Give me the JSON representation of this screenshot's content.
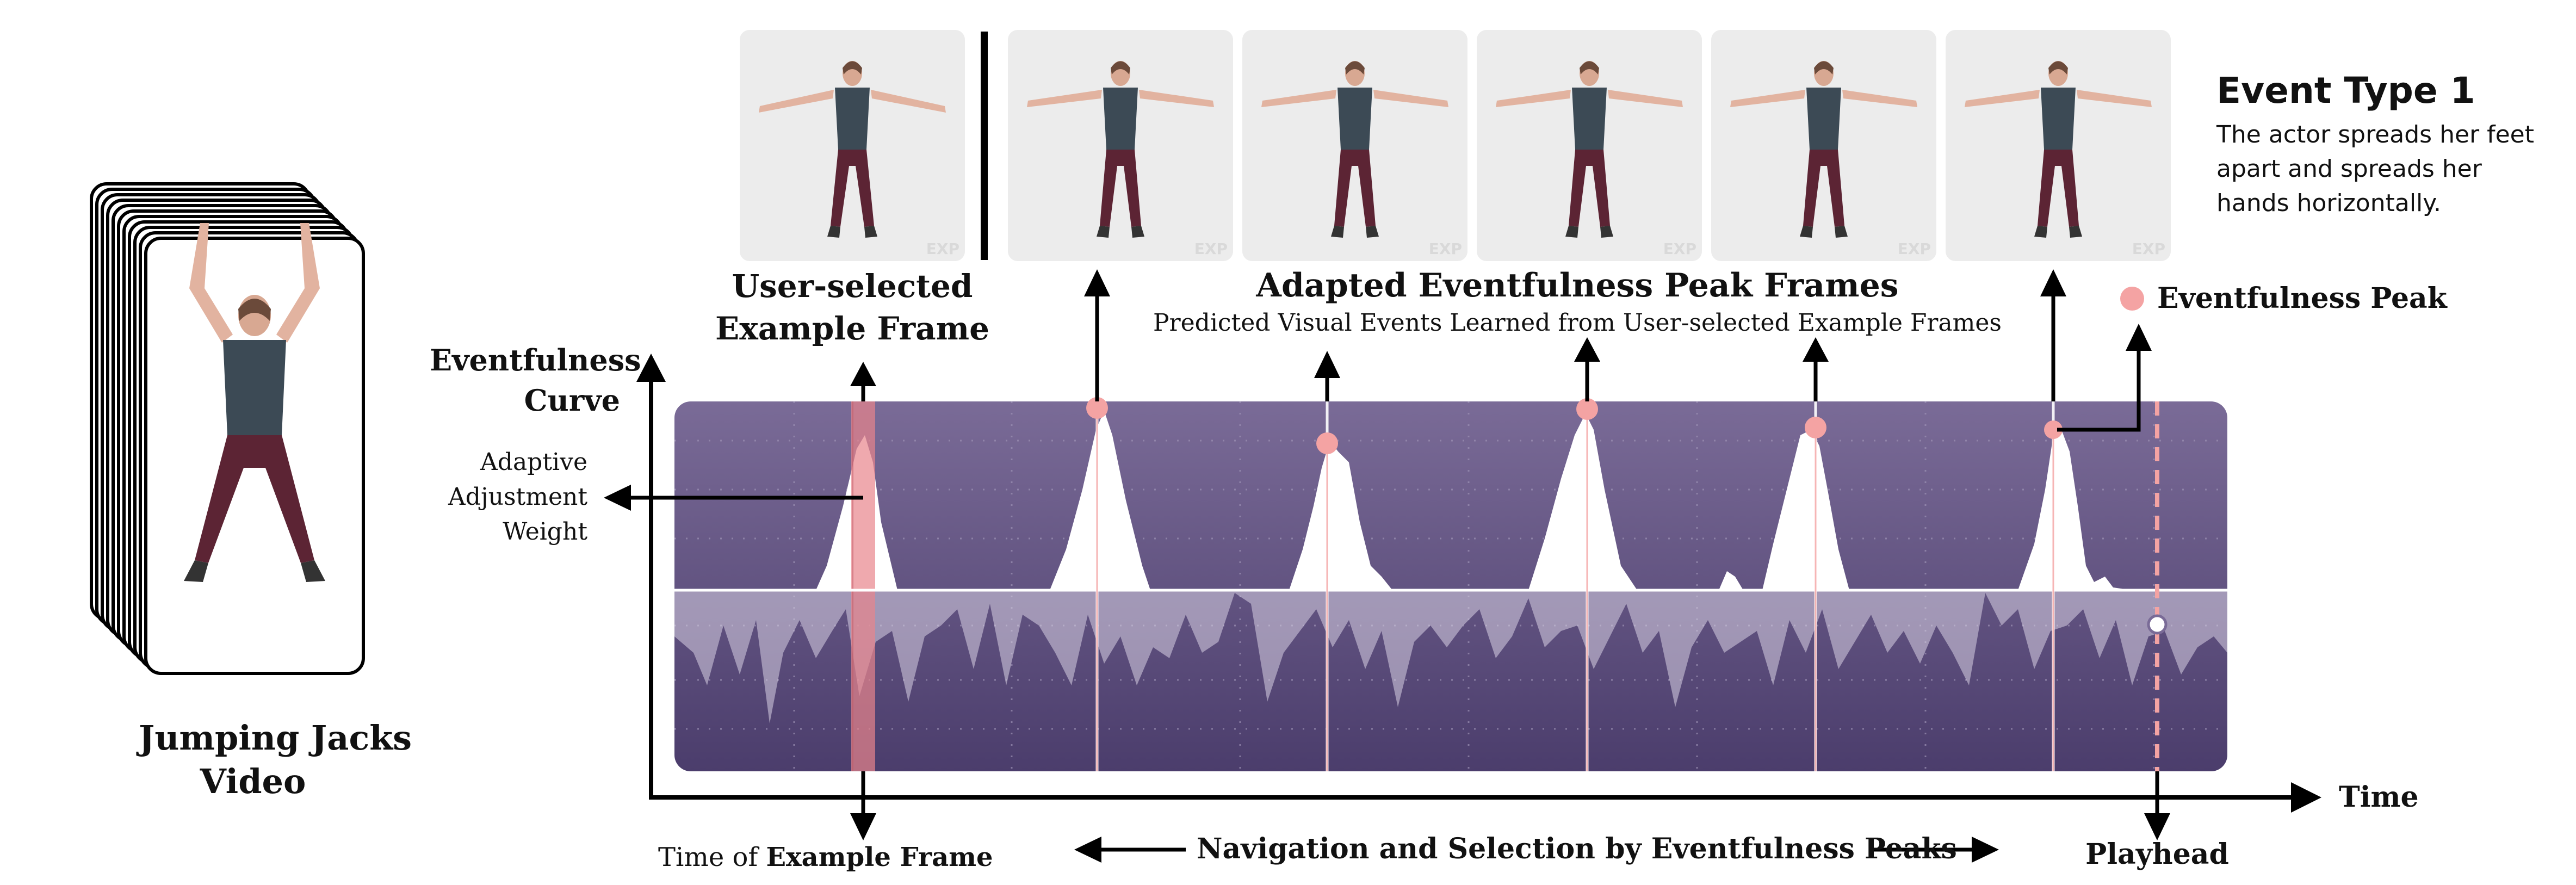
{
  "video": {
    "title_line1": "Jumping Jacks",
    "title_line2": "Video"
  },
  "example_frame": {
    "label_line1": "User-selected",
    "label_line2": "Example Frame"
  },
  "adapted": {
    "title": "Adapted Eventfulness Peak Frames",
    "subtitle": "Predicted Visual Events Learned from User-selected Example Frames"
  },
  "event_type": {
    "title": "Event Type 1",
    "desc_line1": "The actor spreads her feet",
    "desc_line2": "apart and spreads her",
    "desc_line3": "hands horizontally."
  },
  "legend": {
    "peak_label": "Eventfulness Peak",
    "peak_color": "#f4a3a3"
  },
  "curve_label": {
    "line1": "Eventfulness",
    "line2": "Curve"
  },
  "weight_label": {
    "line1": "Adaptive",
    "line2": "Adjustment",
    "line3": "Weight"
  },
  "time_axis_label": "Time",
  "time_of_example": {
    "prefix": "Time of ",
    "bold": "Example Frame"
  },
  "navigation": "Navigation and Selection by Eventfulness Peaks",
  "playhead": "Playhead",
  "watermark": "EXP",
  "colors": {
    "panel_top": "#7a6b97",
    "panel_bottom": "#4b3d6c",
    "highlight": "#e8848c",
    "playhead_line": "#f4a3a3"
  }
}
